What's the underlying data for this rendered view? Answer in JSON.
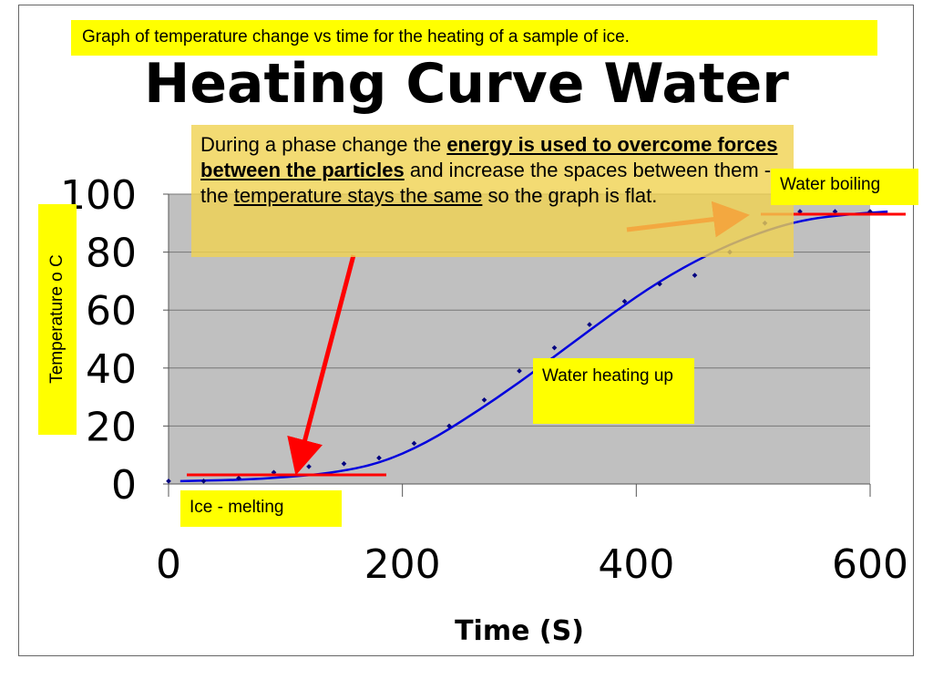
{
  "chart_data": {
    "type": "scatter",
    "title": "Heating Curve Water",
    "xlabel": "Time (S)",
    "ylabel": "Temperature o C",
    "xlim": [
      0,
      600
    ],
    "ylim": [
      0,
      100
    ],
    "x_ticks": [
      "0",
      "200",
      "400",
      "600"
    ],
    "y_ticks": [
      "0",
      "20",
      "40",
      "60",
      "80",
      "100"
    ],
    "grid": true,
    "series": [
      {
        "points": [
          {
            "x": 0,
            "y": 1
          },
          {
            "x": 30,
            "y": 1
          },
          {
            "x": 60,
            "y": 2
          },
          {
            "x": 90,
            "y": 4
          },
          {
            "x": 120,
            "y": 6
          },
          {
            "x": 150,
            "y": 7
          },
          {
            "x": 180,
            "y": 9
          },
          {
            "x": 210,
            "y": 14
          },
          {
            "x": 240,
            "y": 20
          },
          {
            "x": 270,
            "y": 29
          },
          {
            "x": 300,
            "y": 39
          },
          {
            "x": 330,
            "y": 47
          },
          {
            "x": 360,
            "y": 55
          },
          {
            "x": 390,
            "y": 63
          },
          {
            "x": 420,
            "y": 69
          },
          {
            "x": 450,
            "y": 72
          },
          {
            "x": 480,
            "y": 80
          },
          {
            "x": 510,
            "y": 90
          },
          {
            "x": 540,
            "y": 94
          },
          {
            "x": 570,
            "y": 94
          },
          {
            "x": 600,
            "y": 94
          }
        ],
        "color": "#000080"
      }
    ],
    "trendline": {
      "type": "polynomial",
      "color": "#0000dd",
      "points": [
        {
          "x": 10,
          "y": 1
        },
        {
          "x": 60,
          "y": 1.4
        },
        {
          "x": 100,
          "y": 2.3
        },
        {
          "x": 140,
          "y": 3.8
        },
        {
          "x": 180,
          "y": 7
        },
        {
          "x": 220,
          "y": 14
        },
        {
          "x": 260,
          "y": 24
        },
        {
          "x": 300,
          "y": 35
        },
        {
          "x": 340,
          "y": 47
        },
        {
          "x": 380,
          "y": 59
        },
        {
          "x": 420,
          "y": 70
        },
        {
          "x": 460,
          "y": 79
        },
        {
          "x": 500,
          "y": 86
        },
        {
          "x": 540,
          "y": 91
        },
        {
          "x": 580,
          "y": 93
        },
        {
          "x": 615,
          "y": 94
        }
      ]
    }
  },
  "annotations": {
    "caption": "Graph of temperature change vs time for the heating of a sample of ice.",
    "explanation": {
      "part1": "During a phase change the ",
      "emph1": "energy is used to overcome forces between the particles",
      "part2": " and increase the spaces between them - the ",
      "emph2": "temperature stays the same",
      "part3": " so the graph is flat."
    },
    "water_boiling": "Water boiling",
    "water_heating": "Water heating up",
    "ice_melting": "Ice - melting",
    "y_axis_label": "Temperature o C"
  },
  "colors": {
    "plot_background": "#c0c0c0",
    "trendline": "#0000dd",
    "arrow": "#ff0000",
    "highlight": "#ffff00",
    "explanation_fill": "#f0d250"
  }
}
